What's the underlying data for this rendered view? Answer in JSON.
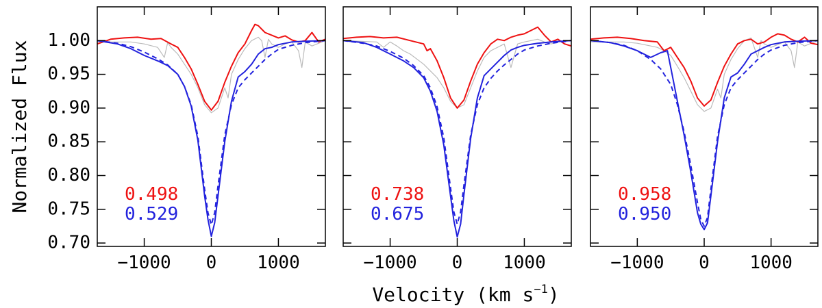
{
  "chart_data": {
    "type": "line",
    "title": "",
    "ylabel": "Normalized Flux",
    "xlabel_main": "Velocity (km s",
    "xlabel_exp": "−1",
    "xlabel_close": ")",
    "ylim": [
      0.695,
      1.05
    ],
    "xlim": [
      -1700,
      1700
    ],
    "yticks": [
      {
        "value": 0.7,
        "label": "0.70"
      },
      {
        "value": 0.75,
        "label": "0.75"
      },
      {
        "value": 0.8,
        "label": "0.80"
      },
      {
        "value": 0.85,
        "label": "0.85"
      },
      {
        "value": 0.9,
        "label": "0.90"
      },
      {
        "value": 0.95,
        "label": "0.95"
      },
      {
        "value": 1.0,
        "label": "1.00"
      }
    ],
    "xticks": [
      {
        "value": -1000,
        "label": "−1000"
      },
      {
        "value": 0,
        "label": "0"
      },
      {
        "value": 1000,
        "label": "1000"
      }
    ],
    "colors": {
      "red": "#ee1111",
      "blue": "#2222dd",
      "gray": "#bbbbbb"
    },
    "panels": [
      {
        "labels": [
          {
            "text": "0.498",
            "color": "red"
          },
          {
            "text": "0.529",
            "color": "blue"
          }
        ],
        "series": [
          {
            "name": "blue-solid",
            "color": "blue",
            "dash": false,
            "x": [
              -1700,
              -1400,
              -1200,
              -1000,
              -800,
              -650,
              -500,
              -400,
              -300,
              -200,
              -100,
              -50,
              0,
              50,
              100,
              200,
              300,
              400,
              500,
              600,
              700,
              800,
              900,
              1000,
              1200,
              1400,
              1700
            ],
            "y": [
              1.0,
              0.995,
              0.988,
              0.978,
              0.97,
              0.963,
              0.95,
              0.932,
              0.903,
              0.852,
              0.77,
              0.735,
              0.71,
              0.73,
              0.77,
              0.85,
              0.91,
              0.946,
              0.954,
              0.965,
              0.98,
              0.988,
              0.99,
              0.994,
              0.998,
              0.999,
              1.0
            ]
          },
          {
            "name": "blue-dashed",
            "color": "blue",
            "dash": true,
            "x": [
              -1700,
              -1400,
              -1200,
              -1000,
              -800,
              -650,
              -500,
              -400,
              -300,
              -200,
              -100,
              -50,
              0,
              50,
              100,
              200,
              300,
              400,
              500,
              600,
              700,
              800,
              900,
              1000,
              1200,
              1400,
              1700
            ],
            "y": [
              1.0,
              0.996,
              0.991,
              0.983,
              0.973,
              0.964,
              0.95,
              0.932,
              0.905,
              0.858,
              0.78,
              0.745,
              0.727,
              0.745,
              0.785,
              0.86,
              0.905,
              0.93,
              0.942,
              0.952,
              0.962,
              0.972,
              0.98,
              0.987,
              0.993,
              0.997,
              1.0
            ]
          },
          {
            "name": "red-solid",
            "color": "red",
            "dash": false,
            "x": [
              -1700,
              -1500,
              -1300,
              -1100,
              -900,
              -750,
              -600,
              -500,
              -400,
              -300,
              -200,
              -100,
              0,
              100,
              200,
              300,
              400,
              500,
              600,
              650,
              700,
              800,
              900,
              1000,
              1100,
              1200,
              1300,
              1400,
              1500,
              1600,
              1700
            ],
            "y": [
              0.995,
              1.002,
              1.004,
              1.005,
              1.002,
              1.003,
              0.995,
              0.99,
              0.975,
              0.958,
              0.935,
              0.91,
              0.897,
              0.91,
              0.938,
              0.962,
              0.982,
              0.995,
              1.015,
              1.024,
              1.022,
              1.012,
              1.008,
              1.004,
              1.007,
              1.001,
              0.998,
              1.0,
              1.012,
              0.998,
              1.002
            ]
          },
          {
            "name": "gray-solid",
            "color": "gray",
            "dash": false,
            "x": [
              -1700,
              -1200,
              -1000,
              -800,
              -700,
              -650,
              -600,
              -500,
              -400,
              -300,
              -200,
              -100,
              0,
              100,
              200,
              250,
              300,
              400,
              500,
              600,
              700,
              750,
              800,
              850,
              900,
              1000,
              1100,
              1200,
              1300,
              1350,
              1400,
              1500,
              1700
            ],
            "y": [
              0.998,
              0.998,
              0.995,
              0.99,
              0.975,
              0.997,
              0.99,
              0.98,
              0.965,
              0.95,
              0.93,
              0.905,
              0.893,
              0.9,
              0.93,
              0.915,
              0.95,
              0.972,
              0.988,
              1.0,
              1.005,
              1.0,
              0.975,
              1.002,
              0.995,
              0.99,
              0.995,
              0.998,
              0.985,
              0.96,
              0.998,
              0.992,
              1.0
            ]
          }
        ]
      },
      {
        "labels": [
          {
            "text": "0.738",
            "color": "red"
          },
          {
            "text": "0.675",
            "color": "blue"
          }
        ],
        "series": [
          {
            "name": "blue-solid",
            "color": "blue",
            "dash": false,
            "x": [
              -1700,
              -1400,
              -1200,
              -1000,
              -800,
              -650,
              -500,
              -400,
              -300,
              -200,
              -100,
              -50,
              0,
              50,
              100,
              200,
              300,
              400,
              500,
              600,
              700,
              800,
              900,
              1000,
              1200,
              1400,
              1700
            ],
            "y": [
              1.0,
              0.997,
              0.99,
              0.98,
              0.97,
              0.96,
              0.945,
              0.925,
              0.895,
              0.845,
              0.77,
              0.733,
              0.709,
              0.728,
              0.772,
              0.855,
              0.915,
              0.948,
              0.958,
              0.968,
              0.978,
              0.986,
              0.99,
              0.993,
              0.996,
              0.998,
              1.0
            ]
          },
          {
            "name": "blue-dashed",
            "color": "blue",
            "dash": true,
            "x": [
              -1700,
              -1400,
              -1200,
              -1000,
              -800,
              -650,
              -500,
              -400,
              -300,
              -200,
              -100,
              -50,
              0,
              50,
              100,
              200,
              300,
              400,
              500,
              600,
              700,
              800,
              900,
              1000,
              1200,
              1400,
              1700
            ],
            "y": [
              1.0,
              0.996,
              0.992,
              0.984,
              0.974,
              0.963,
              0.948,
              0.93,
              0.902,
              0.856,
              0.782,
              0.746,
              0.728,
              0.746,
              0.786,
              0.86,
              0.905,
              0.93,
              0.944,
              0.955,
              0.964,
              0.972,
              0.98,
              0.986,
              0.992,
              0.996,
              1.0
            ]
          },
          {
            "name": "red-solid",
            "color": "red",
            "dash": false,
            "x": [
              -1700,
              -1500,
              -1300,
              -1100,
              -900,
              -700,
              -500,
              -450,
              -400,
              -300,
              -200,
              -100,
              0,
              100,
              200,
              300,
              400,
              500,
              600,
              700,
              800,
              900,
              1000,
              1100,
              1200,
              1300,
              1400,
              1500,
              1600,
              1700
            ],
            "y": [
              1.003,
              1.005,
              1.006,
              1.004,
              1.005,
              1.0,
              0.995,
              0.985,
              0.988,
              0.97,
              0.945,
              0.915,
              0.9,
              0.912,
              0.94,
              0.965,
              0.982,
              0.995,
              1.002,
              1.0,
              1.005,
              1.008,
              1.01,
              1.015,
              1.02,
              1.008,
              0.998,
              1.002,
              0.995,
              0.992
            ]
          },
          {
            "name": "gray-solid",
            "color": "gray",
            "dash": false,
            "x": [
              -1700,
              -1200,
              -1100,
              -1000,
              -900,
              -800,
              -700,
              -500,
              -400,
              -300,
              -200,
              -100,
              0,
              100,
              200,
              300,
              400,
              500,
              600,
              700,
              800,
              900,
              1000,
              1100,
              1200,
              1300,
              1400,
              1500,
              1700
            ],
            "y": [
              1.0,
              0.998,
              0.99,
              0.998,
              0.992,
              0.985,
              0.98,
              0.965,
              0.955,
              0.945,
              0.93,
              0.91,
              0.9,
              0.905,
              0.93,
              0.955,
              0.975,
              0.985,
              0.99,
              0.995,
              0.96,
              0.995,
              0.998,
              1.0,
              1.002,
              0.998,
              0.995,
              0.998,
              1.0
            ]
          }
        ]
      },
      {
        "labels": [
          {
            "text": "0.958",
            "color": "red"
          },
          {
            "text": "0.950",
            "color": "blue"
          }
        ],
        "series": [
          {
            "name": "blue-solid",
            "color": "blue",
            "dash": false,
            "x": [
              -1700,
              -1400,
              -1200,
              -1000,
              -800,
              -650,
              -550,
              -500,
              -400,
              -300,
              -200,
              -100,
              -50,
              0,
              50,
              100,
              200,
              300,
              400,
              500,
              600,
              700,
              800,
              900,
              1000,
              1200,
              1400,
              1700
            ],
            "y": [
              1.0,
              0.997,
              0.992,
              0.985,
              0.975,
              0.982,
              0.985,
              0.96,
              0.91,
              0.86,
              0.805,
              0.745,
              0.728,
              0.72,
              0.73,
              0.77,
              0.85,
              0.915,
              0.946,
              0.952,
              0.965,
              0.98,
              0.985,
              0.99,
              0.994,
              0.998,
              0.999,
              1.0
            ]
          },
          {
            "name": "blue-dashed",
            "color": "blue",
            "dash": true,
            "x": [
              -1700,
              -1400,
              -1200,
              -1000,
              -800,
              -650,
              -500,
              -400,
              -300,
              -200,
              -100,
              -50,
              0,
              50,
              100,
              200,
              300,
              400,
              500,
              600,
              700,
              800,
              900,
              1000,
              1200,
              1400,
              1700
            ],
            "y": [
              1.0,
              0.997,
              0.993,
              0.985,
              0.972,
              0.958,
              0.935,
              0.905,
              0.865,
              0.815,
              0.76,
              0.735,
              0.725,
              0.738,
              0.78,
              0.858,
              0.905,
              0.93,
              0.942,
              0.952,
              0.962,
              0.972,
              0.98,
              0.986,
              0.993,
              0.997,
              1.0
            ]
          },
          {
            "name": "red-solid",
            "color": "red",
            "dash": false,
            "x": [
              -1700,
              -1500,
              -1300,
              -1100,
              -900,
              -700,
              -600,
              -500,
              -400,
              -300,
              -200,
              -100,
              0,
              100,
              200,
              300,
              400,
              500,
              600,
              700,
              800,
              900,
              1000,
              1100,
              1200,
              1300,
              1400,
              1500,
              1600,
              1700
            ],
            "y": [
              1.002,
              1.004,
              1.005,
              1.003,
              1.0,
              0.998,
              0.985,
              0.99,
              0.975,
              0.96,
              0.94,
              0.915,
              0.903,
              0.912,
              0.938,
              0.962,
              0.98,
              0.995,
              1.0,
              1.002,
              0.995,
              0.998,
              1.005,
              1.01,
              1.008,
              1.002,
              0.998,
              1.005,
              0.996,
              0.994
            ]
          },
          {
            "name": "gray-solid",
            "color": "gray",
            "dash": false,
            "x": [
              -1700,
              -1200,
              -1000,
              -800,
              -700,
              -600,
              -500,
              -400,
              -300,
              -200,
              -100,
              0,
              100,
              200,
              250,
              300,
              400,
              500,
              600,
              700,
              800,
              850,
              900,
              1000,
              1100,
              1200,
              1300,
              1350,
              1400,
              1500,
              1700
            ],
            "y": [
              0.998,
              0.998,
              0.996,
              0.992,
              0.99,
              0.985,
              0.978,
              0.962,
              0.945,
              0.925,
              0.905,
              0.895,
              0.9,
              0.928,
              0.915,
              0.95,
              0.972,
              0.988,
              1.0,
              1.004,
              0.975,
              1.0,
              0.995,
              0.99,
              0.994,
              0.998,
              0.985,
              0.96,
              0.998,
              0.992,
              1.0
            ]
          }
        ]
      }
    ]
  }
}
